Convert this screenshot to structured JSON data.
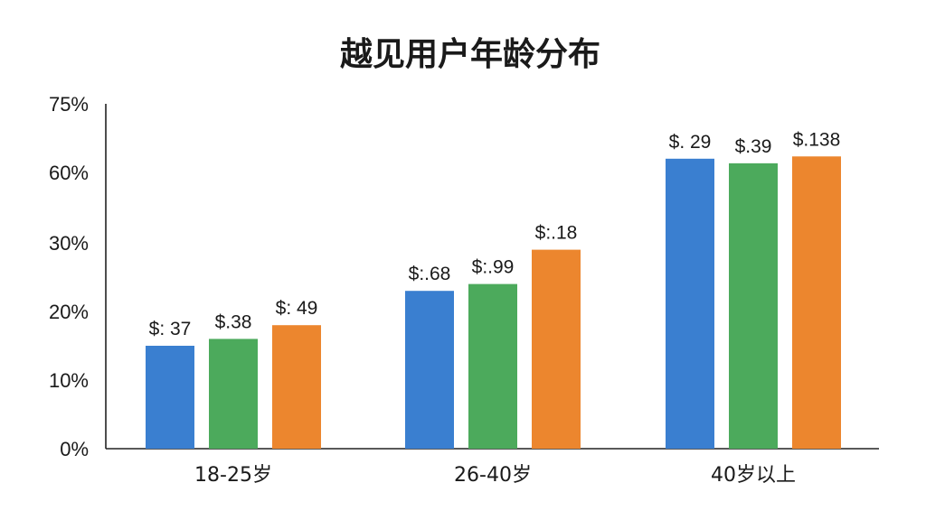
{
  "chart_data": {
    "type": "bar",
    "title": "越见用户年龄分布",
    "xlabel": "",
    "ylabel": "",
    "y_axis_scale": "categorical",
    "y_ticks": [
      "0%",
      "10%",
      "20%",
      "30%",
      "60%",
      "75%"
    ],
    "grid": false,
    "legend": "none",
    "categories": [
      "18-25岁",
      "26-40岁",
      "40岁以上"
    ],
    "series": [
      {
        "color": "#3a7fd0",
        "values": [
          15,
          23,
          63
        ],
        "labels": [
          "$: 37",
          "$:.68",
          "$. 29"
        ]
      },
      {
        "color": "#4caa5c",
        "values": [
          16,
          24,
          62
        ],
        "labels": [
          "$.38",
          "$:.99",
          "$.39"
        ]
      },
      {
        "color": "#ec862e",
        "values": [
          18,
          29,
          63.5
        ],
        "labels": [
          "$: 49",
          "$:.18",
          "$.138"
        ]
      }
    ],
    "bar_values_note": ""
  }
}
